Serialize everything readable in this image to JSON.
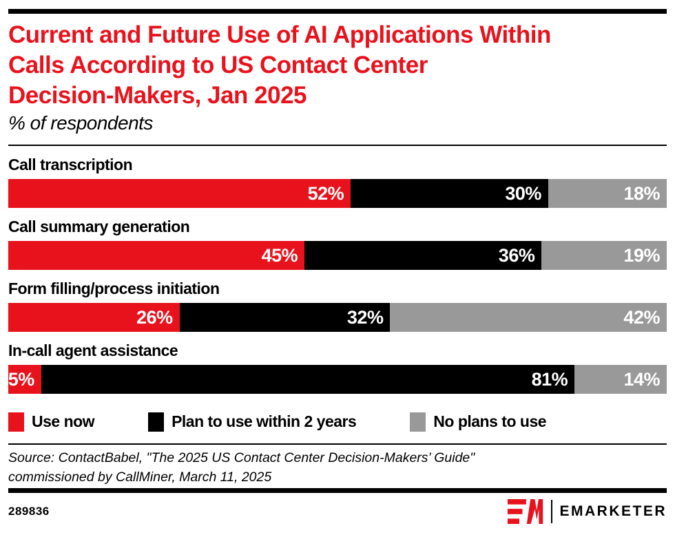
{
  "colors": {
    "accent_red": "#E8121C",
    "black": "#000000",
    "gray": "#999999",
    "white_label": "#ffffff"
  },
  "header": {
    "title": "Current and Future Use of AI Applications Within\nCalls According to US Contact Center\nDecision-Makers, Jan 2025",
    "subtitle": "% of respondents"
  },
  "chart_data": {
    "type": "bar",
    "orientation": "horizontal-stacked",
    "title": "Current and Future Use of AI Applications Within Calls According to US Contact Center Decision-Makers, Jan 2025",
    "subtitle": "% of respondents",
    "categories": [
      "Call transcription",
      "Call summary generation",
      "Form filling/process initiation",
      "In-call agent assistance"
    ],
    "series": [
      {
        "name": "Use now",
        "color": "#E8121C",
        "values": [
          52,
          45,
          26,
          5
        ]
      },
      {
        "name": "Plan to use within 2 years",
        "color": "#000000",
        "values": [
          30,
          36,
          32,
          81
        ]
      },
      {
        "name": "No plans to use",
        "color": "#999999",
        "values": [
          18,
          19,
          42,
          14
        ]
      }
    ],
    "value_suffix": "%",
    "xlim": [
      0,
      100
    ],
    "grid": false,
    "legend_position": "bottom",
    "value_labels": "inside-right-white-bold"
  },
  "legend": {
    "items": [
      {
        "label": "Use now",
        "color": "#E8121C"
      },
      {
        "label": "Plan to use within 2 years",
        "color": "#000000"
      },
      {
        "label": "No plans to use",
        "color": "#999999"
      }
    ]
  },
  "source": {
    "text": "Source: ContactBabel, \"The 2025 US Contact Center Decision-Makers’ Guide\"\ncommissioned by CallMiner, March 11, 2025"
  },
  "footer": {
    "chart_id": "289836",
    "brand_wordmark": "EMARKETER"
  }
}
